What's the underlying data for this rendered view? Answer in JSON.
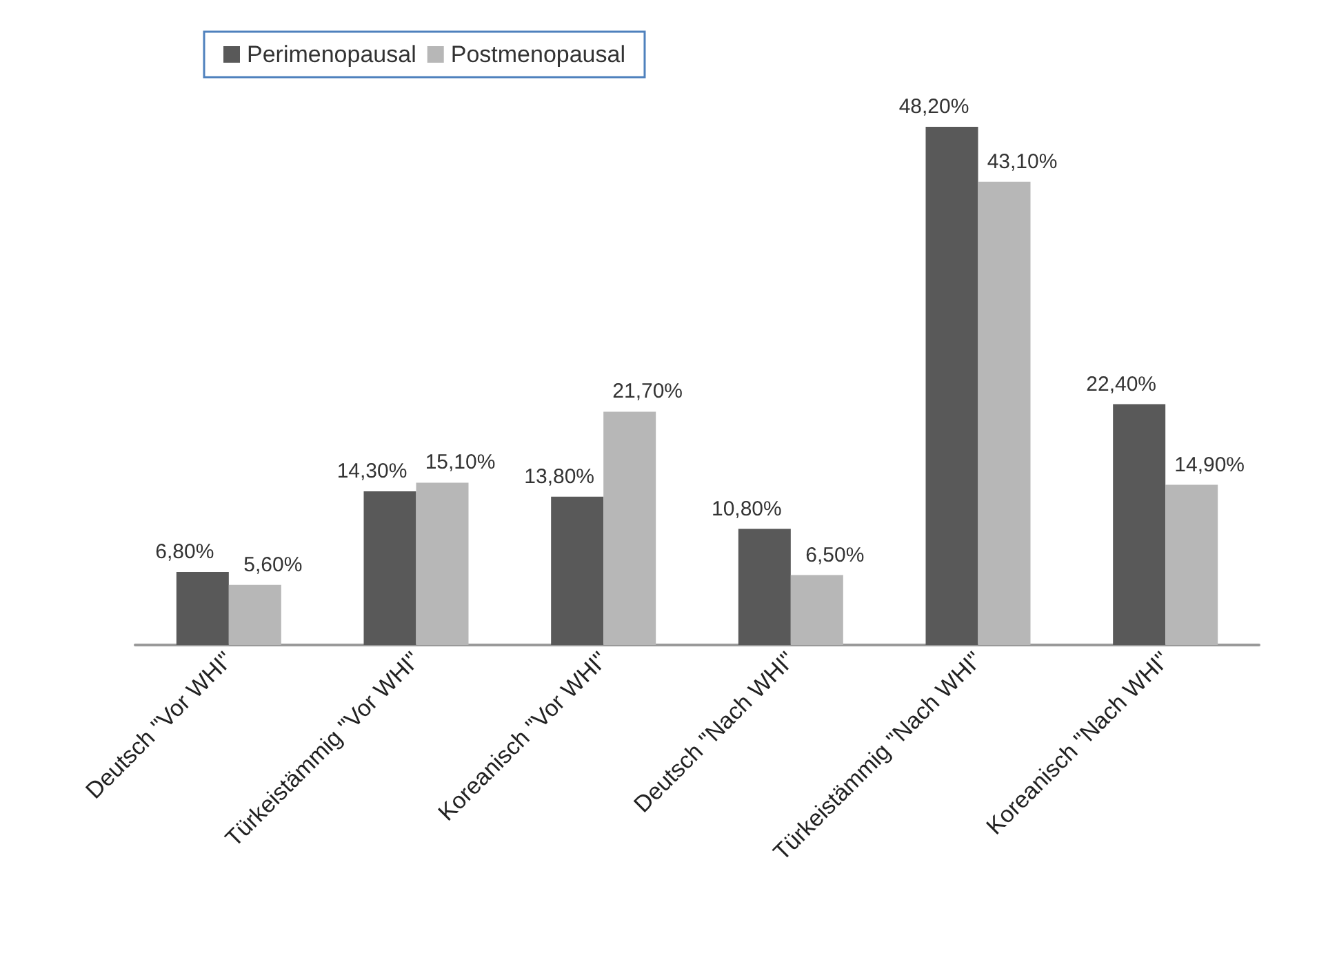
{
  "chart_data": {
    "type": "bar",
    "categories": [
      "Deutsch \"Vor WHI\"",
      "Türkeistämmig \"Vor WHI\"",
      "Koreanisch \"Vor WHI\"",
      "Deutsch \"Nach WHI\"",
      "Türkeistämmig \"Nach WHI\"",
      "Koreanisch \"Nach WHI\""
    ],
    "series": [
      {
        "name": "Perimenopausal",
        "color": "#595959",
        "values": [
          6.8,
          14.3,
          13.8,
          10.8,
          48.2,
          22.4
        ],
        "value_labels": [
          "6,80%",
          "14,30%",
          "13,80%",
          "10,80%",
          "48,20%",
          "22,40%"
        ]
      },
      {
        "name": "Postmenopausal",
        "color": "#b7b7b7",
        "values": [
          5.6,
          15.1,
          21.7,
          6.5,
          43.1,
          14.9
        ],
        "value_labels": [
          "5,60%",
          "15,10%",
          "21,70%",
          "6,50%",
          "43,10%",
          "14,90%"
        ]
      }
    ],
    "legend": "top left",
    "tick_labels": "x"
  }
}
